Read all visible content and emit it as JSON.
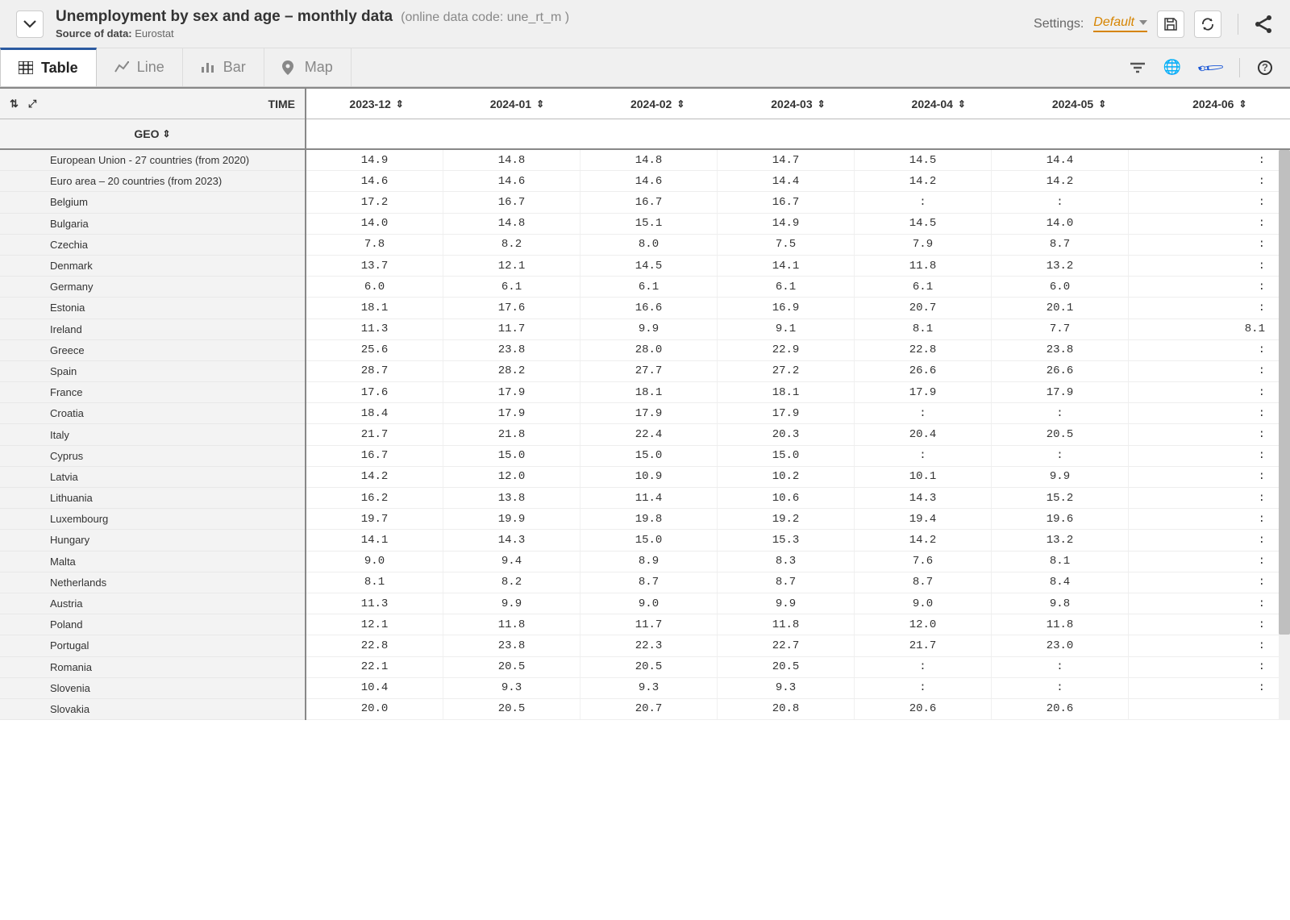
{
  "header": {
    "title": "Unemployment by sex and age – monthly data",
    "datacode": "(online data code: une_rt_m )",
    "source_label": "Source of data:",
    "source_value": "Eurostat",
    "settings_label": "Settings:",
    "settings_value": "Default"
  },
  "tabs": [
    {
      "id": "table",
      "label": "Table",
      "active": true
    },
    {
      "id": "line",
      "label": "Line",
      "active": false
    },
    {
      "id": "bar",
      "label": "Bar",
      "active": false
    },
    {
      "id": "map",
      "label": "Map",
      "active": false
    }
  ],
  "table": {
    "time_label": "TIME",
    "geo_label": "GEO",
    "columns": [
      "2023-12",
      "2024-01",
      "2024-02",
      "2024-03",
      "2024-04",
      "2024-05",
      "2024-06"
    ],
    "rows": [
      {
        "geo": "European Union - 27 countries (from 2020)",
        "vals": [
          "14.9",
          "14.8",
          "14.8",
          "14.7",
          "14.5",
          "14.4",
          ":"
        ]
      },
      {
        "geo": "Euro area – 20 countries (from 2023)",
        "vals": [
          "14.6",
          "14.6",
          "14.6",
          "14.4",
          "14.2",
          "14.2",
          ":"
        ]
      },
      {
        "geo": "Belgium",
        "vals": [
          "17.2",
          "16.7",
          "16.7",
          "16.7",
          ":",
          ":",
          ":"
        ]
      },
      {
        "geo": "Bulgaria",
        "vals": [
          "14.0",
          "14.8",
          "15.1",
          "14.9",
          "14.5",
          "14.0",
          ":"
        ]
      },
      {
        "geo": "Czechia",
        "vals": [
          "7.8",
          "8.2",
          "8.0",
          "7.5",
          "7.9",
          "8.7",
          ":"
        ]
      },
      {
        "geo": "Denmark",
        "vals": [
          "13.7",
          "12.1",
          "14.5",
          "14.1",
          "11.8",
          "13.2",
          ":"
        ]
      },
      {
        "geo": "Germany",
        "vals": [
          "6.0",
          "6.1",
          "6.1",
          "6.1",
          "6.1",
          "6.0",
          ":"
        ]
      },
      {
        "geo": "Estonia",
        "vals": [
          "18.1",
          "17.6",
          "16.6",
          "16.9",
          "20.7",
          "20.1",
          ":"
        ]
      },
      {
        "geo": "Ireland",
        "vals": [
          "11.3",
          "11.7",
          "9.9",
          "9.1",
          "8.1",
          "7.7",
          "8.1"
        ]
      },
      {
        "geo": "Greece",
        "vals": [
          "25.6",
          "23.8",
          "28.0",
          "22.9",
          "22.8",
          "23.8",
          ":"
        ]
      },
      {
        "geo": "Spain",
        "vals": [
          "28.7",
          "28.2",
          "27.7",
          "27.2",
          "26.6",
          "26.6",
          ":"
        ]
      },
      {
        "geo": "France",
        "vals": [
          "17.6",
          "17.9",
          "18.1",
          "18.1",
          "17.9",
          "17.9",
          ":"
        ]
      },
      {
        "geo": "Croatia",
        "vals": [
          "18.4",
          "17.9",
          "17.9",
          "17.9",
          ":",
          ":",
          ":"
        ]
      },
      {
        "geo": "Italy",
        "vals": [
          "21.7",
          "21.8",
          "22.4",
          "20.3",
          "20.4",
          "20.5",
          ":"
        ]
      },
      {
        "geo": "Cyprus",
        "vals": [
          "16.7",
          "15.0",
          "15.0",
          "15.0",
          ":",
          ":",
          ":"
        ]
      },
      {
        "geo": "Latvia",
        "vals": [
          "14.2",
          "12.0",
          "10.9",
          "10.2",
          "10.1",
          "9.9",
          ":"
        ]
      },
      {
        "geo": "Lithuania",
        "vals": [
          "16.2",
          "13.8",
          "11.4",
          "10.6",
          "14.3",
          "15.2",
          ":"
        ]
      },
      {
        "geo": "Luxembourg",
        "vals": [
          "19.7",
          "19.9",
          "19.8",
          "19.2",
          "19.4",
          "19.6",
          ":"
        ]
      },
      {
        "geo": "Hungary",
        "vals": [
          "14.1",
          "14.3",
          "15.0",
          "15.3",
          "14.2",
          "13.2",
          ":"
        ]
      },
      {
        "geo": "Malta",
        "vals": [
          "9.0",
          "9.4",
          "8.9",
          "8.3",
          "7.6",
          "8.1",
          ":"
        ]
      },
      {
        "geo": "Netherlands",
        "vals": [
          "8.1",
          "8.2",
          "8.7",
          "8.7",
          "8.7",
          "8.4",
          ":"
        ]
      },
      {
        "geo": "Austria",
        "vals": [
          "11.3",
          "9.9",
          "9.0",
          "9.9",
          "9.0",
          "9.8",
          ":"
        ]
      },
      {
        "geo": "Poland",
        "vals": [
          "12.1",
          "11.8",
          "11.7",
          "11.8",
          "12.0",
          "11.8",
          ":"
        ]
      },
      {
        "geo": "Portugal",
        "vals": [
          "22.8",
          "23.8",
          "22.3",
          "22.7",
          "21.7",
          "23.0",
          ":"
        ]
      },
      {
        "geo": "Romania",
        "vals": [
          "22.1",
          "20.5",
          "20.5",
          "20.5",
          ":",
          ":",
          ":"
        ]
      },
      {
        "geo": "Slovenia",
        "vals": [
          "10.4",
          "9.3",
          "9.3",
          "9.3",
          ":",
          ":",
          ":"
        ]
      },
      {
        "geo": "Slovakia",
        "vals": [
          "20.0",
          "20.5",
          "20.7",
          "20.8",
          "20.6",
          "20.6",
          ""
        ]
      }
    ]
  },
  "colors": {
    "header_bg": "#f0f0f0",
    "active_tab_border": "#2b5aa0",
    "settings_accent": "#d68400",
    "brush": "#1a57d6",
    "geo_bg": "#f3f3f3"
  }
}
